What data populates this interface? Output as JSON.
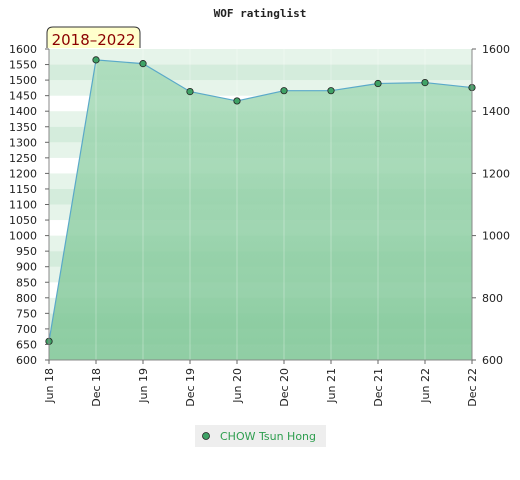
{
  "chart_data": {
    "type": "area",
    "title": "WOF ratinglist",
    "period_badge": "2018–2022",
    "categories": [
      "Jun 18",
      "Dec 18",
      "Jun 19",
      "Dec 19",
      "Jun 20",
      "Dec 20",
      "Jun 21",
      "Dec 21",
      "Jun 22",
      "Dec 22"
    ],
    "series": [
      {
        "name": "CHOW Tsun Hong",
        "values": [
          660,
          1565,
          1553,
          1463,
          1433,
          1466,
          1466,
          1489,
          1492,
          1476
        ]
      }
    ],
    "y_left": {
      "range": [
        600,
        1600
      ],
      "ticks": [
        600,
        650,
        700,
        750,
        800,
        850,
        900,
        950,
        1000,
        1050,
        1100,
        1150,
        1200,
        1250,
        1300,
        1350,
        1400,
        1450,
        1500,
        1550,
        1600
      ]
    },
    "y_right": {
      "range": [
        600,
        1600
      ],
      "ticks": [
        600,
        800,
        1000,
        1200,
        1400,
        1600
      ]
    },
    "grid": "striped horizontal bands",
    "legend_position": "bottom-center",
    "colors": {
      "line": "#5aa9c9",
      "marker": "#3fa266",
      "area_top": "#a8dbb9",
      "area_bottom": "#7cc594",
      "badge_bg": "#ffffcc",
      "badge_text": "#8b0000",
      "legend_text": "#2e9e4f"
    }
  }
}
